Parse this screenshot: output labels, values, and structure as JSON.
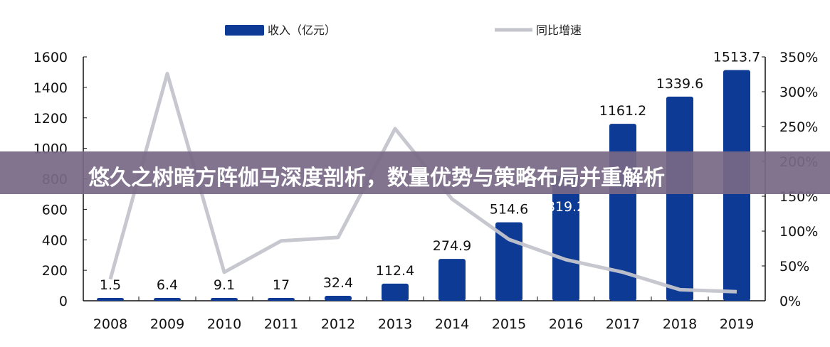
{
  "banner": {
    "title": "悠久之树暗方阵伽马深度剖析，数量优势与策略布局并重解析"
  },
  "chart_data": {
    "type": "bar",
    "categories": [
      "2008",
      "2009",
      "2010",
      "2011",
      "2012",
      "2013",
      "2014",
      "2015",
      "2016",
      "2017",
      "2018",
      "2019"
    ],
    "series": [
      {
        "name": "收入（亿元）",
        "type": "bar",
        "axis": "left",
        "color": "#0d3a94",
        "values": [
          1.5,
          6.4,
          9.1,
          17,
          32.4,
          112.4,
          274.9,
          514.6,
          819.2,
          1161.2,
          1339.6,
          1513.7
        ],
        "labels": [
          "1.5",
          "6.4",
          "9.1",
          "17",
          "32.4",
          "112.4",
          "274.9",
          "514.6",
          "819.2",
          "1161.2",
          "1339.6",
          "1513.7"
        ]
      },
      {
        "name": "同比增速",
        "type": "line",
        "axis": "right",
        "color": "#c4c4cc",
        "values": [
          31,
          326,
          41,
          86,
          91,
          247,
          146,
          88,
          59,
          41,
          16,
          13
        ]
      }
    ],
    "ylim": [
      0,
      1600
    ],
    "yticks": [
      "0",
      "200",
      "400",
      "600",
      "800",
      "1000",
      "1200",
      "1400",
      "1600"
    ],
    "y2lim": [
      0,
      350
    ],
    "y2ticks": [
      "0%",
      "50%",
      "100%",
      "150%",
      "200%",
      "250%",
      "300%",
      "350%"
    ],
    "legend": "top",
    "grid": false
  }
}
